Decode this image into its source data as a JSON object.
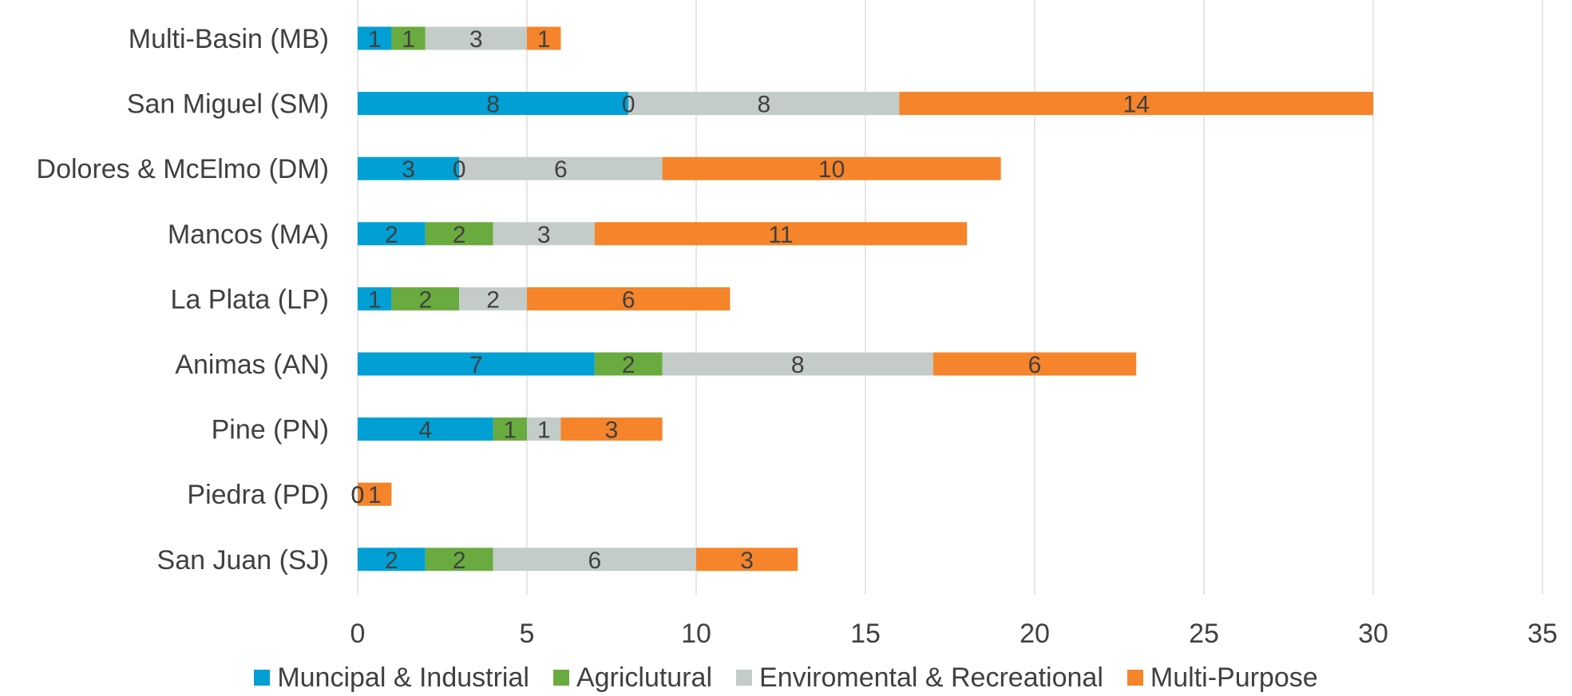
{
  "chart_data": {
    "type": "bar",
    "orientation": "horizontal",
    "stacked": true,
    "categories": [
      "San Juan (SJ)",
      "Piedra (PD)",
      "Pine (PN)",
      "Animas (AN)",
      "La Plata (LP)",
      "Mancos (MA)",
      "Dolores & McElmo (DM)",
      "San Miguel (SM)",
      "Multi-Basin (MB)"
    ],
    "series": [
      {
        "name": "Muncipal & Industrial",
        "color": "#009fd4",
        "values": [
          2,
          0,
          4,
          7,
          1,
          2,
          3,
          8,
          1
        ]
      },
      {
        "name": "Agriclutural",
        "color": "#6aab3f",
        "values": [
          2,
          0,
          1,
          2,
          2,
          2,
          0,
          0,
          1
        ]
      },
      {
        "name": "Enviromental & Recreational",
        "color": "#c3ccc8",
        "values": [
          6,
          0,
          1,
          8,
          2,
          3,
          6,
          8,
          3
        ]
      },
      {
        "name": "Multi-Purpose",
        "color": "#f5842a",
        "values": [
          3,
          1,
          3,
          6,
          6,
          11,
          10,
          14,
          1
        ]
      }
    ],
    "title": "",
    "xlabel": "",
    "ylabel": "",
    "xlim": [
      0,
      35
    ],
    "xticks": [
      0,
      5,
      10,
      15,
      20,
      25,
      30,
      35
    ],
    "grid": "vertical",
    "legend_position": "bottom",
    "data_labels": true
  }
}
